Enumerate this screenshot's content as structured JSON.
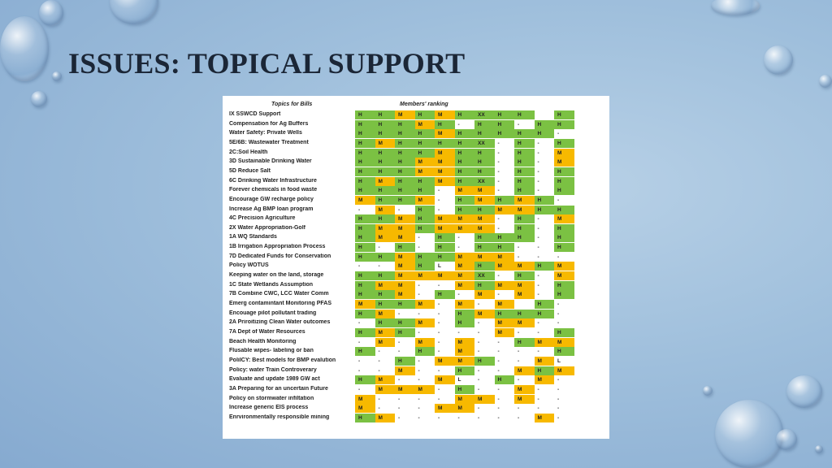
{
  "slide": {
    "title": "ISSUES: TOPICAL SUPPORT"
  },
  "table": {
    "topics_header": "Topics for Bills",
    "ranking_header": "Members' ranking",
    "colors": {
      "H": "#7bc143",
      "M": "#f7b900",
      "blank": "#ffffff"
    },
    "rows": [
      {
        "topic": "IX SSWCD Support",
        "cells": [
          "H",
          "H",
          "M",
          "H",
          "M",
          "H",
          "XX",
          "H",
          "H",
          "",
          "H"
        ]
      },
      {
        "topic": "Compensation for  Ag Buffers",
        "cells": [
          "H",
          "H",
          "H",
          "M",
          "H",
          "-",
          "H",
          "H",
          "-",
          "H",
          "H"
        ]
      },
      {
        "topic": "Water Safety: Private Wells",
        "cells": [
          "H",
          "H",
          "H",
          "H",
          "M",
          "H",
          "H",
          "H",
          "H",
          "H",
          "-"
        ]
      },
      {
        "topic": "5E/6B: Wastewater Treatment",
        "cells": [
          "H",
          "M",
          "H",
          "H",
          "H",
          "H",
          "XX",
          "-",
          "H",
          "-",
          "H"
        ]
      },
      {
        "topic": "2C:Soil Health",
        "cells": [
          "H",
          "H",
          "H",
          "H",
          "M",
          "H",
          "H",
          "-",
          "H",
          "-",
          "M"
        ]
      },
      {
        "topic": "3D Sustainable Drinking Water",
        "cells": [
          "H",
          "H",
          "H",
          "M",
          "M",
          "H",
          "H",
          "-",
          "H",
          "-",
          "M"
        ]
      },
      {
        "topic": "5D Reduce Salt",
        "cells": [
          "H",
          "H",
          "H",
          "M",
          "M",
          "H",
          "H",
          "-",
          "H",
          "-",
          "H"
        ]
      },
      {
        "topic": "6C Drinking Water Infrastructure",
        "cells": [
          "H",
          "M",
          "H",
          "H",
          "M",
          "H",
          "XX",
          "-",
          "H",
          "-",
          "H"
        ]
      },
      {
        "topic": "Forever chemicals in food waste",
        "cells": [
          "H",
          "H",
          "H",
          "H",
          "-",
          "M",
          "M",
          "-",
          "H",
          "-",
          "H"
        ]
      },
      {
        "topic": "Encourage GW recharge policy",
        "cells": [
          "M",
          "H",
          "H",
          "M",
          "-",
          "H",
          "M",
          "H",
          "M",
          "H",
          "-"
        ]
      },
      {
        "topic": "Increase Ag BMP loan program",
        "cells": [
          "-",
          "M",
          "-",
          "H",
          "-",
          "H",
          "H",
          "M",
          "M",
          "H",
          "H"
        ]
      },
      {
        "topic": "4C Precision Agriculture",
        "cells": [
          "H",
          "H",
          "M",
          "H",
          "M",
          "M",
          "M",
          "-",
          "H",
          "-",
          "M"
        ]
      },
      {
        "topic": "2X Water Appropriation-Golf",
        "cells": [
          "H",
          "M",
          "M",
          "H",
          "M",
          "M",
          "M",
          "-",
          "H",
          "-",
          "H"
        ]
      },
      {
        "topic": "1A WQ Standards",
        "cells": [
          "H",
          "M",
          "M",
          "-",
          "H",
          "-",
          "H",
          "H",
          "H",
          "-",
          "H"
        ]
      },
      {
        "topic": "1B Irrigation Appropriation Process",
        "cells": [
          "H",
          "-",
          "H",
          "-",
          "H",
          "-",
          "H",
          "H",
          "-",
          "-",
          "H"
        ]
      },
      {
        "topic": "7D Dedicated Funds for Conservation",
        "cells": [
          "H",
          "H",
          "M",
          "H",
          "H",
          "M",
          "M",
          "M",
          "-",
          "-",
          "-"
        ]
      },
      {
        "topic": "Policy WOTUS",
        "cells": [
          "-",
          "-",
          "M",
          "H",
          "L",
          "M",
          "H",
          "M",
          "M",
          "H",
          "M"
        ]
      },
      {
        "topic": "Keeping water on the land, storage",
        "cells": [
          "H",
          "H",
          "M",
          "M",
          "M",
          "M",
          "XX",
          "-",
          "H",
          "-",
          "M"
        ]
      },
      {
        "topic": "1C State Wetlands Assumption",
        "cells": [
          "H",
          "M",
          "M",
          "-",
          "-",
          "M",
          "H",
          "M",
          "M",
          "-",
          "H"
        ]
      },
      {
        "topic": "7B Combine CWC, LCC Water Comm",
        "cells": [
          "H",
          "H",
          "M",
          "-",
          "H",
          "-",
          "M",
          "-",
          "M",
          "-",
          "H"
        ]
      },
      {
        "topic": "Emerg contamintant Monitoring PFAS",
        "cells": [
          "M",
          "H",
          "H",
          "M",
          "-",
          "M",
          "-",
          "M",
          "",
          "H",
          "-"
        ]
      },
      {
        "topic": "Encouage pilot pollutant trading",
        "cells": [
          "H",
          "M",
          "-",
          "-",
          "-",
          "H",
          "M",
          "H",
          "H",
          "H",
          "-"
        ]
      },
      {
        "topic": " 2A Priroitizing Clean Water outcomes",
        "cells": [
          "-",
          "H",
          "H",
          "M",
          "-",
          "H",
          "-",
          "M",
          "M",
          "-",
          "-"
        ]
      },
      {
        "topic": "7A Dept of Water Resources",
        "cells": [
          "H",
          "M",
          "H",
          "-",
          "-",
          "-",
          "-",
          "M",
          "-",
          "-",
          "H"
        ]
      },
      {
        "topic": "Beach Health Monitoring",
        "cells": [
          "-",
          "M",
          "-",
          "M",
          "-",
          "M",
          "-",
          "-",
          "H",
          "M",
          "M"
        ]
      },
      {
        "topic": "Flusable wipes- labeling or ban",
        "cells": [
          "H",
          "-",
          "-",
          "H",
          "-",
          "M",
          "-",
          "-",
          "-",
          "-",
          "H"
        ]
      },
      {
        "topic": "PoliICY: Best models for BMP evalution",
        "cells": [
          "-",
          "-",
          "H",
          "-",
          "M",
          "M",
          "H",
          "-",
          "-",
          "M",
          "L"
        ]
      },
      {
        "topic": "Policy: water Train Controverary",
        "cells": [
          "-",
          "-",
          "M",
          "-",
          "-",
          "H",
          "-",
          "-",
          "M",
          "H",
          "M"
        ]
      },
      {
        "topic": "Evaluate and update 1989 GW act",
        "cells": [
          "H",
          "M",
          "-",
          "-",
          "M",
          "L",
          "-",
          "H",
          "-",
          "M",
          "-"
        ]
      },
      {
        "topic": "3A Preparing for an uncertain Future",
        "cells": [
          "-",
          "M",
          "M",
          "M",
          "-",
          "H",
          "-",
          "-",
          "M",
          "-",
          "-"
        ]
      },
      {
        "topic": "Policy on stormwater infiltation",
        "cells": [
          "M",
          "-",
          "-",
          "-",
          "-",
          "M",
          "M",
          "-",
          "M",
          "-",
          "-"
        ]
      },
      {
        "topic": "Increase generic EIS process",
        "cells": [
          "M",
          "-",
          "-",
          "-",
          "M",
          "M",
          "-",
          "-",
          "-",
          "-",
          "-"
        ]
      },
      {
        "topic": "Enrvironmentally responsible mining",
        "cells": [
          "H",
          "M",
          "-",
          "-",
          "-",
          "-",
          "-",
          "-",
          "-",
          "M",
          "-"
        ]
      }
    ]
  }
}
